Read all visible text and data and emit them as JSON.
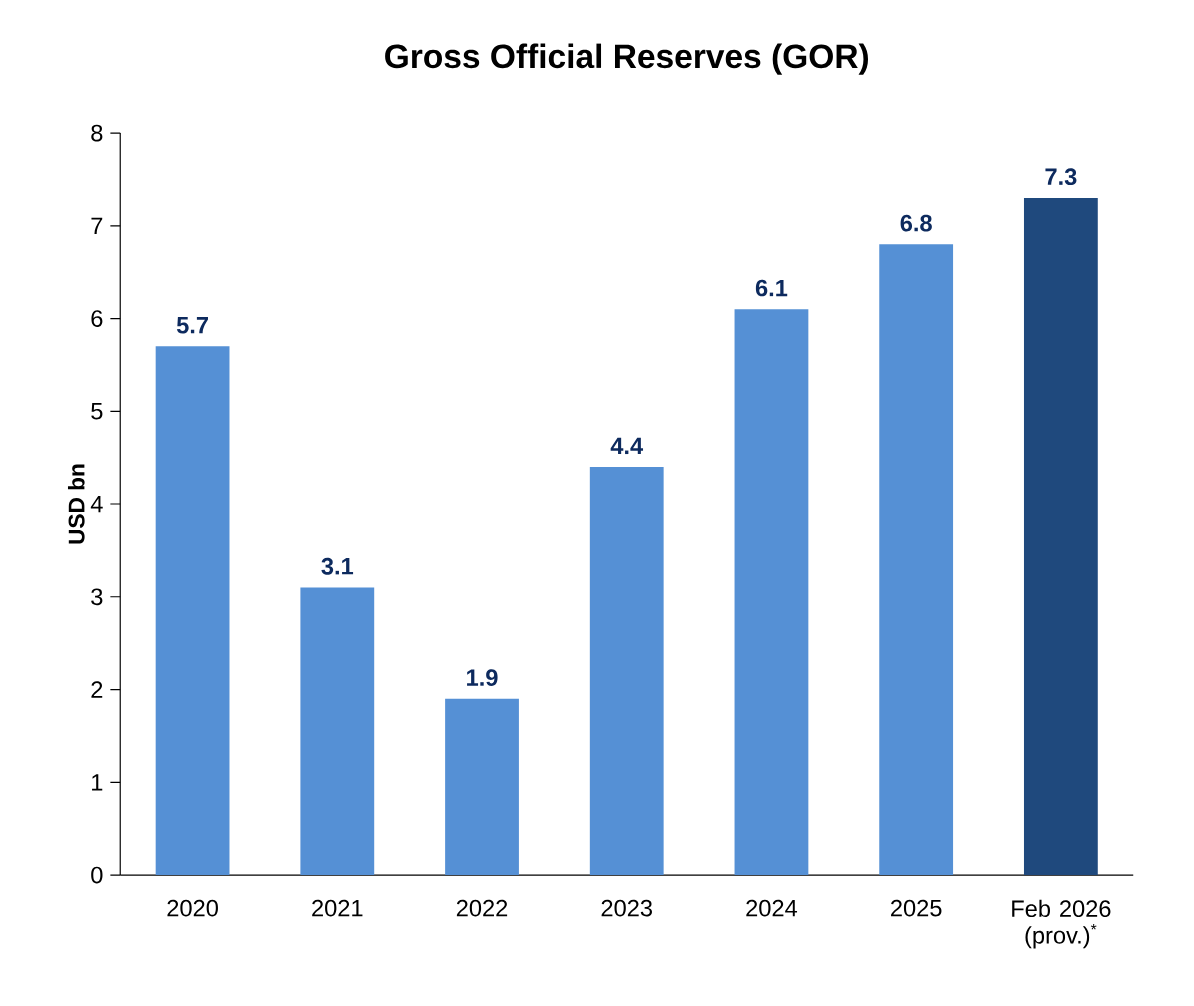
{
  "chart_data": {
    "type": "bar",
    "title": "Gross Official Reserves (GOR)",
    "ylabel": "USD bn",
    "categories": [
      "2020",
      "2021",
      "2022",
      "2023",
      "2024",
      "2025",
      "Feb 2026 (prov.)$^{*}$"
    ],
    "values": [
      5.7,
      3.1,
      1.9,
      4.4,
      6.1,
      6.8,
      7.3
    ],
    "colors": [
      "#5590d5",
      "#5590d5",
      "#5590d5",
      "#5590d5",
      "#5590d5",
      "#5590d5",
      "#1f497d"
    ],
    "ylim": [
      0,
      8
    ],
    "yticks": [
      0,
      1,
      2,
      3,
      4,
      5,
      6,
      7,
      8
    ],
    "grid": false,
    "data_labels": true
  }
}
